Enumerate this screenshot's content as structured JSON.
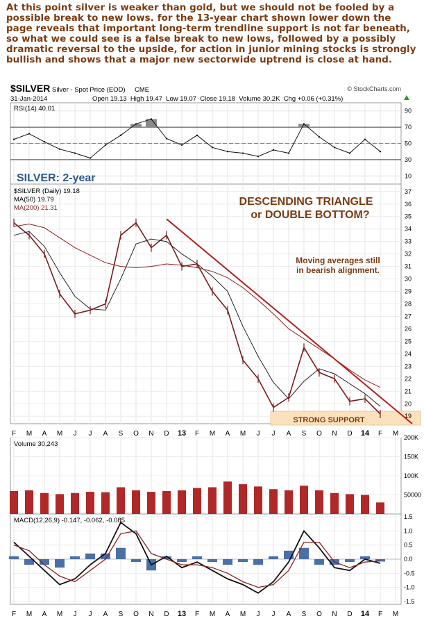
{
  "commentary": "At this point silver is weaker than gold, but we should not be fooled by a possible break to new lows. for the 13-year chart shown lower down the page reveals that important long-term trendline support is not far beneath, so what we could see is a false break to new lows, followed by a possibly dramatic reversal to the upside, for action in junior mining stocks is strongly bullish and shows that a major new sectorwide uptrend is close at hand.",
  "header": {
    "symbol": "$SILVER",
    "name": "Silver - Spot Price (EOD)",
    "exchange": "CME",
    "watermark": "© StockCharts.com",
    "date": "31-Jan-2014",
    "ohlc": "Open 19.13  High 19.47  Low 19.07  Close 19.18  Volume 30.2K  Chg +0.06 (+0.31%)",
    "trend_icon": "up-triangle-icon"
  },
  "annotations": {
    "period_label": "SILVER: 2-year",
    "pattern_title_1": "DESCENDING TRIANGLE",
    "pattern_title_2": "or DOUBLE BOTTOM?",
    "ma_note_1": "Moving averages still",
    "ma_note_2": "in bearish alignment.",
    "support_label": "STRONG SUPPORT"
  },
  "colors": {
    "annotation_brown": "#7a3b12",
    "title_blue": "#2e5a8c",
    "price_bars": "#7a1a1a",
    "ma50": "#222222",
    "ma200": "#8b2020",
    "trendline": "#b02020",
    "support_fill": "#fbe2bd",
    "volume_bars": "#b02828",
    "macd_hist": "#4a70a8",
    "rsi_fill": "#8a8a8a"
  },
  "chart_data": [
    {
      "panel": "rsi",
      "type": "line",
      "legend": "RSI(14) 40.01",
      "ylim": [
        0,
        100
      ],
      "y_ticks": [
        10,
        30,
        50,
        70,
        90
      ],
      "reference_lines": [
        30,
        70
      ],
      "x": [
        "F",
        "M",
        "A",
        "M",
        "J",
        "J",
        "A",
        "S",
        "O",
        "N",
        "D",
        "13",
        "F",
        "M",
        "A",
        "M",
        "J",
        "J",
        "A",
        "S",
        "O",
        "N",
        "D",
        "14",
        "F"
      ],
      "values": [
        55,
        62,
        52,
        43,
        38,
        32,
        48,
        60,
        74,
        80,
        56,
        48,
        60,
        45,
        40,
        38,
        34,
        42,
        38,
        74,
        58,
        45,
        38,
        55,
        40
      ]
    },
    {
      "panel": "price",
      "type": "line",
      "title": "SILVER: 2-year",
      "legend": [
        {
          "name": "$SILVER (Daily) 19.18"
        },
        {
          "name": "MA(50) 19.79"
        },
        {
          "name": "MA(200) 21.31"
        }
      ],
      "ylim": [
        18.4,
        37.6
      ],
      "y_ticks": [
        19,
        20,
        21,
        22,
        23,
        24,
        25,
        26,
        27,
        28,
        29,
        30,
        31,
        32,
        33,
        34,
        35,
        36,
        37
      ],
      "x": [
        "F",
        "M",
        "A",
        "M",
        "J",
        "J",
        "A",
        "S",
        "O",
        "N",
        "D",
        "13",
        "F",
        "M",
        "A",
        "M",
        "J",
        "J",
        "A",
        "S",
        "O",
        "N",
        "D",
        "14",
        "F"
      ],
      "series": [
        {
          "name": "$SILVER (Daily) 19.18",
          "values": [
            34.5,
            33.5,
            32.0,
            28.8,
            27.2,
            27.5,
            28.0,
            33.5,
            34.5,
            32.5,
            33.5,
            31.0,
            31.2,
            29.0,
            27.5,
            23.5,
            22.0,
            19.7,
            20.5,
            24.5,
            22.5,
            22.0,
            20.2,
            20.4,
            19.18
          ]
        },
        {
          "name": "MA(50) 19.79",
          "values": [
            33.5,
            33.8,
            32.6,
            30.5,
            28.6,
            27.6,
            27.5,
            30.0,
            32.8,
            33.2,
            33.0,
            32.0,
            31.2,
            30.2,
            29.0,
            26.2,
            23.8,
            21.7,
            20.4,
            21.8,
            22.8,
            22.4,
            21.6,
            20.8,
            19.79
          ]
        },
        {
          "name": "MA(200) 21.31",
          "values": [
            34.2,
            34.4,
            34.1,
            33.3,
            32.5,
            31.9,
            31.3,
            31.0,
            30.9,
            31.0,
            31.2,
            31.1,
            30.9,
            30.6,
            30.1,
            29.3,
            28.3,
            27.2,
            26.0,
            25.2,
            24.4,
            23.6,
            22.7,
            21.9,
            21.31
          ]
        }
      ],
      "trendline": {
        "from": [
          "D",
          34.8
        ],
        "to": [
          "F",
          18.4
        ]
      },
      "support_zone": {
        "label": "STRONG SUPPORT",
        "range": [
          18.4,
          19.4
        ]
      }
    },
    {
      "panel": "volume",
      "type": "bar",
      "legend": "Volume 30,243",
      "ylim": [
        0,
        200000
      ],
      "y_ticks": [
        50000,
        100000,
        150000,
        200000
      ],
      "y_tick_labels": [
        "50000",
        "100K",
        "150K",
        "200K"
      ],
      "x": [
        "F",
        "M",
        "A",
        "M",
        "J",
        "J",
        "A",
        "S",
        "O",
        "N",
        "D",
        "13",
        "F",
        "M",
        "A",
        "M",
        "J",
        "J",
        "A",
        "S",
        "O",
        "N",
        "D",
        "14",
        "F"
      ],
      "values": [
        60000,
        62000,
        55000,
        52000,
        55000,
        58000,
        57000,
        70000,
        62000,
        58000,
        60000,
        62000,
        68000,
        70000,
        85000,
        78000,
        72000,
        65000,
        62000,
        74000,
        62000,
        55000,
        52000,
        50000,
        30243
      ]
    },
    {
      "panel": "macd",
      "type": "line",
      "legend": "MACD(12,26,9) -0.147, -0.062, -0.085",
      "ylim": [
        -1.6,
        1.6
      ],
      "y_ticks": [
        -1.5,
        -1.0,
        -0.5,
        0.0,
        0.5,
        1.0,
        1.5
      ],
      "y_tick_labels": [
        "-1.5",
        "-1.0",
        "-0.5",
        "0.0",
        "0.5",
        "1.0",
        "1.5"
      ],
      "x": [
        "F",
        "M",
        "A",
        "M",
        "J",
        "J",
        "A",
        "S",
        "O",
        "N",
        "D",
        "13",
        "F",
        "M",
        "A",
        "M",
        "J",
        "J",
        "A",
        "S",
        "O",
        "N",
        "D",
        "14",
        "F"
      ],
      "series": [
        {
          "name": "MACD",
          "values": [
            0.6,
            0.1,
            -0.4,
            -0.9,
            -0.7,
            -0.2,
            0.2,
            1.3,
            0.9,
            -0.2,
            0.1,
            -0.3,
            -0.1,
            -0.4,
            -0.7,
            -0.9,
            -1.2,
            -0.8,
            -0.1,
            1.0,
            0.4,
            -0.3,
            -0.4,
            0.0,
            -0.147
          ]
        },
        {
          "name": "Signal",
          "values": [
            0.5,
            0.3,
            -0.2,
            -0.6,
            -0.8,
            -0.4,
            0.0,
            0.9,
            1.0,
            0.2,
            0.0,
            -0.2,
            -0.2,
            -0.3,
            -0.5,
            -0.8,
            -1.0,
            -0.9,
            -0.4,
            0.6,
            0.6,
            -0.1,
            -0.3,
            -0.1,
            -0.062
          ]
        }
      ],
      "histogram": [
        0.1,
        -0.2,
        -0.2,
        -0.3,
        0.1,
        0.2,
        0.2,
        0.4,
        -0.1,
        -0.4,
        0.1,
        -0.1,
        0.1,
        -0.1,
        -0.2,
        -0.1,
        -0.2,
        0.1,
        0.3,
        0.4,
        -0.2,
        -0.2,
        -0.1,
        0.1,
        -0.085
      ]
    }
  ],
  "month_axis": [
    "F",
    "M",
    "A",
    "M",
    "J",
    "J",
    "A",
    "S",
    "O",
    "N",
    "D",
    "13",
    "F",
    "M",
    "A",
    "M",
    "J",
    "J",
    "A",
    "S",
    "O",
    "N",
    "D",
    "14",
    "F",
    "M"
  ]
}
